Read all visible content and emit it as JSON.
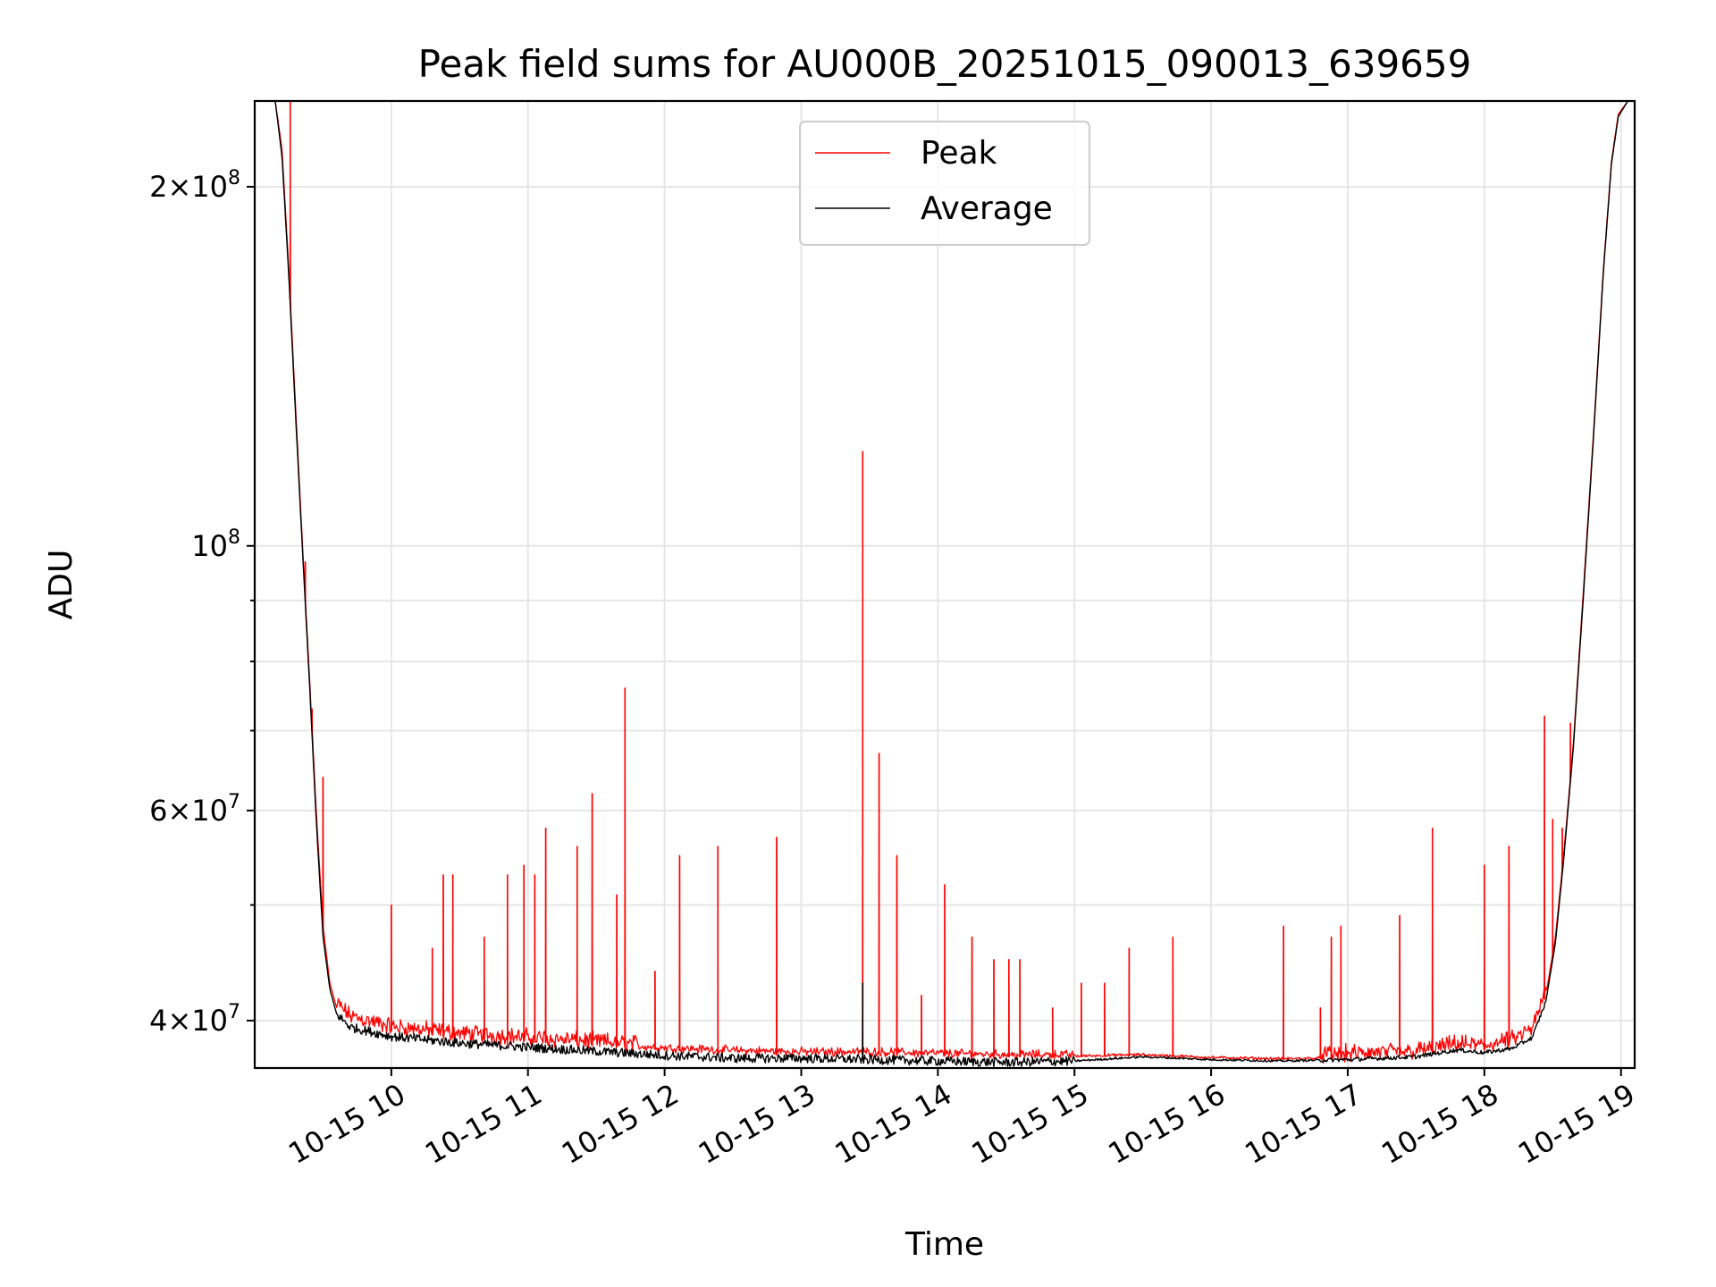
{
  "chart_data": {
    "type": "line",
    "title": "Peak field sums for AU000B_20251015_090013_639659",
    "xlabel": "Time",
    "ylabel": "ADU",
    "y_scale": "log",
    "xlim": [
      9.0,
      19.1
    ],
    "ylim": [
      36500000,
      236000000
    ],
    "grid": true,
    "legend_position": "upper center",
    "x_ticks": [
      {
        "value": 10,
        "label": "10-15 10"
      },
      {
        "value": 11,
        "label": "10-15 11"
      },
      {
        "value": 12,
        "label": "10-15 12"
      },
      {
        "value": 13,
        "label": "10-15 13"
      },
      {
        "value": 14,
        "label": "10-15 14"
      },
      {
        "value": 15,
        "label": "10-15 15"
      },
      {
        "value": 16,
        "label": "10-15 16"
      },
      {
        "value": 17,
        "label": "10-15 17"
      },
      {
        "value": 18,
        "label": "10-15 18"
      },
      {
        "value": 19,
        "label": "10-15 19"
      }
    ],
    "y_major_ticks": [
      {
        "value": 40000000,
        "mantissa": "4",
        "exponent": "7"
      },
      {
        "value": 60000000,
        "mantissa": "6",
        "exponent": "7"
      },
      {
        "value": 100000000,
        "mantissa": "",
        "exponent": "8"
      },
      {
        "value": 200000000,
        "mantissa": "2",
        "exponent": "8"
      }
    ],
    "y_minor_ticks": [
      50000000,
      70000000,
      80000000,
      90000000,
      300000000
    ],
    "series": [
      {
        "name": "Peak",
        "color": "#ff0000",
        "baseline": [
          [
            9.0,
            236000000
          ],
          [
            9.15,
            236000000
          ],
          [
            9.2,
            215000000
          ],
          [
            9.25,
            170000000
          ],
          [
            9.3,
            130000000
          ],
          [
            9.35,
            100000000
          ],
          [
            9.4,
            78000000
          ],
          [
            9.45,
            60000000
          ],
          [
            9.5,
            48000000
          ],
          [
            9.55,
            43000000
          ],
          [
            9.6,
            41000000
          ],
          [
            9.7,
            40000000
          ],
          [
            10.0,
            39200000
          ],
          [
            10.5,
            38700000
          ],
          [
            11.0,
            38400000
          ],
          [
            11.5,
            38100000
          ],
          [
            12.0,
            37800000
          ],
          [
            12.5,
            37600000
          ],
          [
            13.0,
            37500000
          ],
          [
            13.5,
            37500000
          ],
          [
            14.0,
            37400000
          ],
          [
            14.5,
            37300000
          ],
          [
            15.0,
            37300000
          ],
          [
            15.5,
            37400000
          ],
          [
            16.0,
            37200000
          ],
          [
            16.5,
            37100000
          ],
          [
            17.0,
            37200000
          ],
          [
            17.5,
            37400000
          ],
          [
            17.8,
            37900000
          ],
          [
            18.0,
            37800000
          ],
          [
            18.2,
            38200000
          ],
          [
            18.35,
            39000000
          ],
          [
            18.45,
            42000000
          ],
          [
            18.52,
            47000000
          ],
          [
            18.58,
            55000000
          ],
          [
            18.65,
            68000000
          ],
          [
            18.72,
            90000000
          ],
          [
            18.8,
            125000000
          ],
          [
            18.87,
            170000000
          ],
          [
            18.93,
            210000000
          ],
          [
            18.98,
            230000000
          ],
          [
            19.05,
            236000000
          ],
          [
            19.1,
            236000000
          ]
        ],
        "spikes": [
          [
            9.26,
            236000000
          ],
          [
            9.37,
            97000000
          ],
          [
            9.42,
            73000000
          ],
          [
            9.5,
            64000000
          ],
          [
            10.0,
            50000000
          ],
          [
            10.3,
            46000000
          ],
          [
            10.38,
            53000000
          ],
          [
            10.45,
            53000000
          ],
          [
            10.68,
            47000000
          ],
          [
            10.85,
            53000000
          ],
          [
            10.97,
            54000000
          ],
          [
            11.05,
            53000000
          ],
          [
            11.13,
            58000000
          ],
          [
            11.36,
            56000000
          ],
          [
            11.47,
            62000000
          ],
          [
            11.65,
            51000000
          ],
          [
            11.71,
            76000000
          ],
          [
            11.93,
            44000000
          ],
          [
            12.11,
            55000000
          ],
          [
            12.39,
            56000000
          ],
          [
            12.82,
            57000000
          ],
          [
            13.45,
            120000000
          ],
          [
            13.57,
            67000000
          ],
          [
            13.7,
            55000000
          ],
          [
            13.88,
            42000000
          ],
          [
            14.05,
            52000000
          ],
          [
            14.25,
            47000000
          ],
          [
            14.41,
            45000000
          ],
          [
            14.52,
            45000000
          ],
          [
            14.6,
            45000000
          ],
          [
            14.84,
            41000000
          ],
          [
            15.05,
            43000000
          ],
          [
            15.22,
            43000000
          ],
          [
            15.4,
            46000000
          ],
          [
            15.72,
            47000000
          ],
          [
            16.53,
            48000000
          ],
          [
            16.8,
            41000000
          ],
          [
            16.88,
            47000000
          ],
          [
            16.95,
            48000000
          ],
          [
            17.38,
            49000000
          ],
          [
            17.62,
            58000000
          ],
          [
            18.0,
            54000000
          ],
          [
            18.18,
            56000000
          ],
          [
            18.44,
            72000000
          ],
          [
            18.5,
            59000000
          ],
          [
            18.57,
            58000000
          ],
          [
            18.63,
            71000000
          ]
        ]
      },
      {
        "name": "Average",
        "color": "#000000",
        "baseline": [
          [
            9.0,
            236000000
          ],
          [
            9.15,
            236000000
          ],
          [
            9.2,
            212000000
          ],
          [
            9.25,
            168000000
          ],
          [
            9.3,
            128000000
          ],
          [
            9.35,
            99000000
          ],
          [
            9.4,
            77000000
          ],
          [
            9.45,
            59000000
          ],
          [
            9.5,
            47000000
          ],
          [
            9.55,
            42500000
          ],
          [
            9.6,
            40500000
          ],
          [
            9.7,
            39500000
          ],
          [
            10.0,
            38800000
          ],
          [
            10.5,
            38300000
          ],
          [
            11.0,
            38000000
          ],
          [
            11.5,
            37700000
          ],
          [
            12.0,
            37400000
          ],
          [
            12.5,
            37200000
          ],
          [
            13.0,
            37200000
          ],
          [
            13.5,
            37100000
          ],
          [
            14.0,
            37000000
          ],
          [
            14.5,
            36900000
          ],
          [
            15.0,
            37000000
          ],
          [
            15.5,
            37300000
          ],
          [
            16.0,
            37100000
          ],
          [
            16.5,
            37000000
          ],
          [
            17.0,
            37100000
          ],
          [
            17.5,
            37300000
          ],
          [
            17.8,
            37800000
          ],
          [
            18.0,
            37600000
          ],
          [
            18.2,
            37900000
          ],
          [
            18.35,
            38700000
          ],
          [
            18.45,
            41500000
          ],
          [
            18.52,
            46500000
          ],
          [
            18.58,
            54500000
          ],
          [
            18.65,
            67500000
          ],
          [
            18.72,
            89000000
          ],
          [
            18.8,
            124000000
          ],
          [
            18.87,
            169000000
          ],
          [
            18.93,
            209000000
          ],
          [
            18.98,
            229000000
          ],
          [
            19.05,
            236000000
          ],
          [
            19.1,
            236000000
          ]
        ],
        "spikes": [
          [
            13.45,
            43000000
          ]
        ]
      }
    ]
  }
}
